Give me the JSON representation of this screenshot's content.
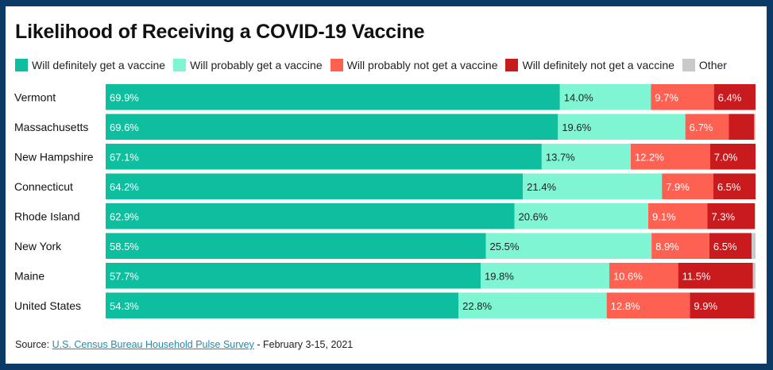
{
  "title": "Likelihood of Receiving a COVID-19 Vaccine",
  "colors": {
    "definitely": "#0dbf9f",
    "probably": "#7ff5d3",
    "probably_not": "#fe6152",
    "definitely_not": "#c91a1e",
    "other": "#c9c9c9",
    "frame": "#0b3a66"
  },
  "source": {
    "prefix": "Source: ",
    "link_text": "U.S. Census Bureau Household Pulse Survey",
    "suffix": " - February 3-15, 2021"
  },
  "chart_data": {
    "type": "bar",
    "orientation": "horizontal",
    "stacked": true,
    "title": "Likelihood of Receiving a COVID-19 Vaccine",
    "legend_position": "top",
    "categories": [
      "Vermont",
      "Massachusetts",
      "New Hampshire",
      "Connecticut",
      "Rhode Island",
      "New York",
      "Maine",
      "United States"
    ],
    "series": [
      {
        "name": "Will definitely get a vaccine",
        "values": [
          69.9,
          69.6,
          67.1,
          64.2,
          62.9,
          58.5,
          57.7,
          54.3
        ]
      },
      {
        "name": "Will probably get a vaccine",
        "values": [
          14.0,
          19.6,
          13.7,
          21.4,
          20.6,
          25.5,
          19.8,
          22.8
        ]
      },
      {
        "name": "Will probably not get a vaccine",
        "values": [
          9.7,
          6.7,
          12.2,
          7.9,
          9.1,
          8.9,
          10.6,
          12.8
        ]
      },
      {
        "name": "Will definitely not get a vaccine",
        "values": [
          6.4,
          3.9,
          7.0,
          6.5,
          7.3,
          6.5,
          11.5,
          9.9
        ]
      },
      {
        "name": "Other",
        "values": [
          0.0,
          0.2,
          0.0,
          0.0,
          0.1,
          0.6,
          0.4,
          0.2
        ]
      }
    ],
    "data_labels": [
      [
        "69.9%",
        "14.0%",
        "9.7%",
        "6.4%",
        ""
      ],
      [
        "69.6%",
        "19.6%",
        "6.7%",
        "",
        ""
      ],
      [
        "67.1%",
        "13.7%",
        "12.2%",
        "7.0%",
        ""
      ],
      [
        "64.2%",
        "21.4%",
        "7.9%",
        "6.5%",
        ""
      ],
      [
        "62.9%",
        "20.6%",
        "9.1%",
        "7.3%",
        ""
      ],
      [
        "58.5%",
        "25.5%",
        "8.9%",
        "6.5%",
        ""
      ],
      [
        "57.7%",
        "19.8%",
        "10.6%",
        "11.5%",
        ""
      ],
      [
        "54.3%",
        "22.8%",
        "12.8%",
        "9.9%",
        ""
      ]
    ],
    "xlim": [
      0,
      100
    ]
  }
}
